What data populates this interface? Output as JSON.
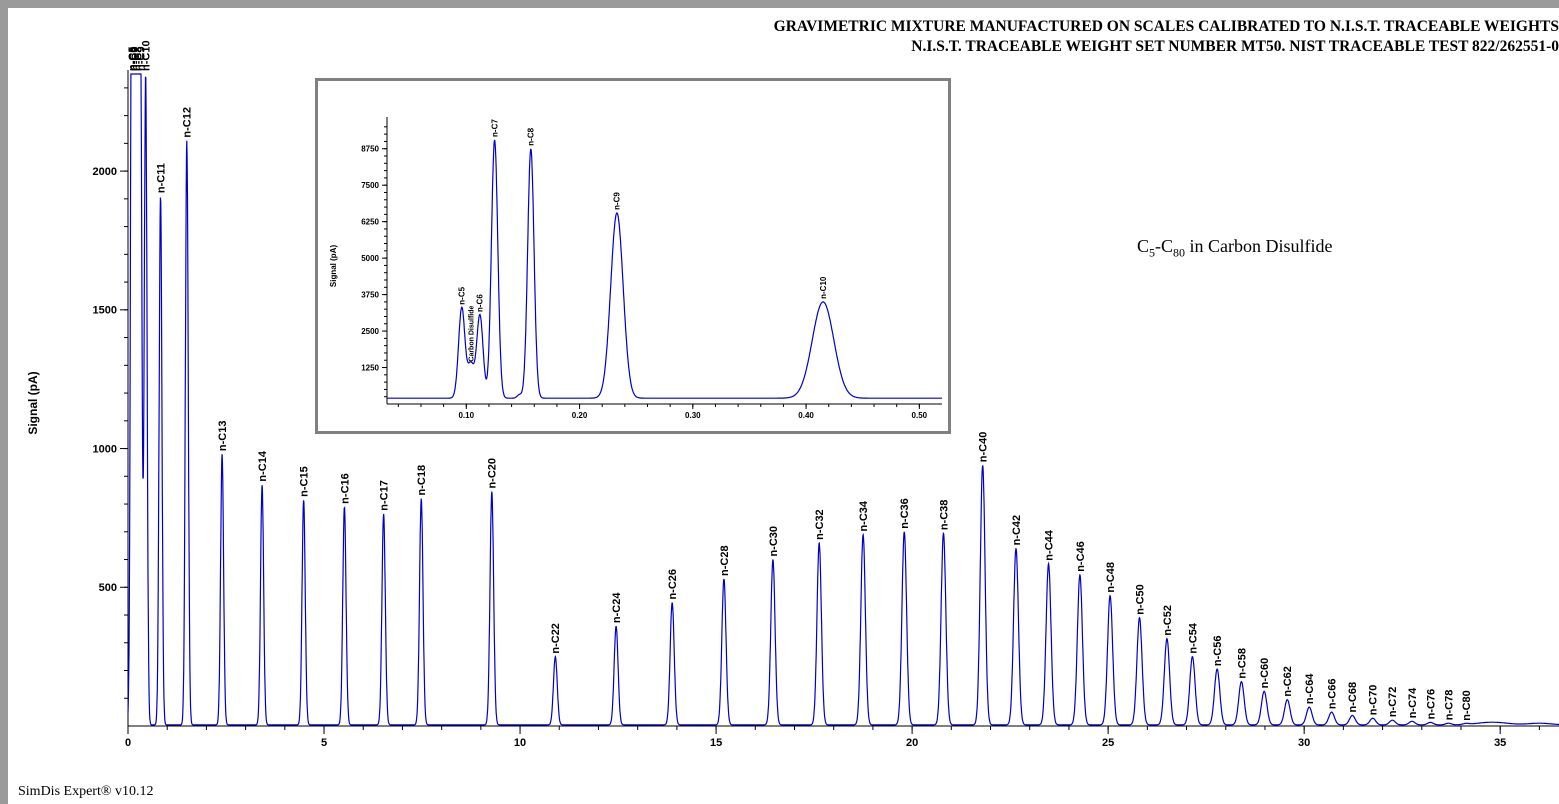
{
  "header": {
    "line1": "GRAVIMETRIC MIXTURE MANUFACTURED ON SCALES CALIBRATED TO N.I.S.T. TRACEABLE WEIGHTS",
    "line2": "N.I.S.T. TRACEABLE WEIGHT SET NUMBER MT50. NIST TRACEABLE TEST 822/262551-0"
  },
  "subtitle": {
    "c": "C",
    "sub1": "5",
    "dash": "-C",
    "sub2": "80",
    "rest": " in Carbon Disulfide"
  },
  "footer": "SimDis Expert® v10.12",
  "colors": {
    "trace": "#0000cc",
    "axis": "#000000",
    "inset_border": "#808080",
    "background": "#9a9a9a"
  },
  "chart_data": [
    {
      "type": "line",
      "ylabel": "Signal (pA)",
      "xlabel": "",
      "xlim": [
        0,
        36.5
      ],
      "ylim": [
        0,
        2350
      ],
      "x_ticks": [
        "0",
        "5",
        "10",
        "15",
        "20",
        "25",
        "30",
        "35"
      ],
      "y_ticks": [
        "500",
        "1000",
        "1500",
        "2000"
      ],
      "peaks": [
        {
          "label": "n-C5",
          "x": 0.1,
          "y": 2350
        },
        {
          "label": "n-C6",
          "x": 0.13,
          "y": 2350
        },
        {
          "label": "n-C7",
          "x": 0.18,
          "y": 2350
        },
        {
          "label": "n-C8",
          "x": 0.25,
          "y": 2350
        },
        {
          "label": "n-C9",
          "x": 0.32,
          "y": 2350
        },
        {
          "label": "n-C10",
          "x": 0.45,
          "y": 2350
        },
        {
          "label": "n-C11",
          "x": 0.83,
          "y": 1910
        },
        {
          "label": "n-C12",
          "x": 1.5,
          "y": 2110
        },
        {
          "label": "n-C13",
          "x": 2.4,
          "y": 980
        },
        {
          "label": "n-C14",
          "x": 3.42,
          "y": 870
        },
        {
          "label": "n-C15",
          "x": 4.48,
          "y": 815
        },
        {
          "label": "n-C16",
          "x": 5.52,
          "y": 790
        },
        {
          "label": "n-C17",
          "x": 6.52,
          "y": 765
        },
        {
          "label": "n-C18",
          "x": 7.48,
          "y": 820
        },
        {
          "label": "n-C20",
          "x": 9.28,
          "y": 845
        },
        {
          "label": "n-C22",
          "x": 10.9,
          "y": 250
        },
        {
          "label": "n-C24",
          "x": 12.45,
          "y": 360
        },
        {
          "label": "n-C26",
          "x": 13.88,
          "y": 445
        },
        {
          "label": "n-C28",
          "x": 15.2,
          "y": 530
        },
        {
          "label": "n-C30",
          "x": 16.45,
          "y": 600
        },
        {
          "label": "n-C32",
          "x": 17.63,
          "y": 660
        },
        {
          "label": "n-C34",
          "x": 18.75,
          "y": 690
        },
        {
          "label": "n-C36",
          "x": 19.8,
          "y": 700
        },
        {
          "label": "n-C38",
          "x": 20.8,
          "y": 695
        },
        {
          "label": "n-C40",
          "x": 21.8,
          "y": 940
        },
        {
          "label": "n-C42",
          "x": 22.65,
          "y": 640
        },
        {
          "label": "n-C44",
          "x": 23.48,
          "y": 585
        },
        {
          "label": "n-C46",
          "x": 24.28,
          "y": 545
        },
        {
          "label": "n-C48",
          "x": 25.05,
          "y": 470
        },
        {
          "label": "n-C50",
          "x": 25.8,
          "y": 390
        },
        {
          "label": "n-C52",
          "x": 26.5,
          "y": 315
        },
        {
          "label": "n-C54",
          "x": 27.15,
          "y": 250
        },
        {
          "label": "n-C56",
          "x": 27.78,
          "y": 205
        },
        {
          "label": "n-C58",
          "x": 28.4,
          "y": 160
        },
        {
          "label": "n-C60",
          "x": 28.98,
          "y": 125
        },
        {
          "label": "n-C62",
          "x": 29.57,
          "y": 95
        },
        {
          "label": "n-C64",
          "x": 30.13,
          "y": 68
        },
        {
          "label": "n-C66",
          "x": 30.7,
          "y": 50
        },
        {
          "label": "n-C68",
          "x": 31.23,
          "y": 38
        },
        {
          "label": "n-C70",
          "x": 31.75,
          "y": 28
        },
        {
          "label": "n-C72",
          "x": 32.25,
          "y": 21
        },
        {
          "label": "n-C74",
          "x": 32.75,
          "y": 17
        },
        {
          "label": "n-C76",
          "x": 33.22,
          "y": 13
        },
        {
          "label": "n-C78",
          "x": 33.68,
          "y": 10
        },
        {
          "label": "n-C80",
          "x": 34.13,
          "y": 8
        }
      ]
    },
    {
      "type": "line",
      "ylabel": "Signal (pA)",
      "xlabel": "",
      "xlim": [
        0.03,
        0.52
      ],
      "ylim": [
        0,
        9700
      ],
      "x_ticks": [
        "0.10",
        "0.20",
        "0.30",
        "0.40",
        "0.50"
      ],
      "y_ticks": [
        "1250",
        "2500",
        "3750",
        "5000",
        "6250",
        "7500",
        "8750"
      ],
      "peaks": [
        {
          "label": "n-C5",
          "x": 0.096,
          "y": 3300
        },
        {
          "label": "Carbon Disulfide",
          "x": 0.104,
          "y": 1350
        },
        {
          "label": "n-C6",
          "x": 0.112,
          "y": 3050
        },
        {
          "label": "n-C7",
          "x": 0.125,
          "y": 9050
        },
        {
          "label": "n-C8",
          "x": 0.157,
          "y": 8750
        },
        {
          "label": "n-C9",
          "x": 0.233,
          "y": 6550
        },
        {
          "label": "n-C10",
          "x": 0.415,
          "y": 3500
        }
      ]
    }
  ]
}
